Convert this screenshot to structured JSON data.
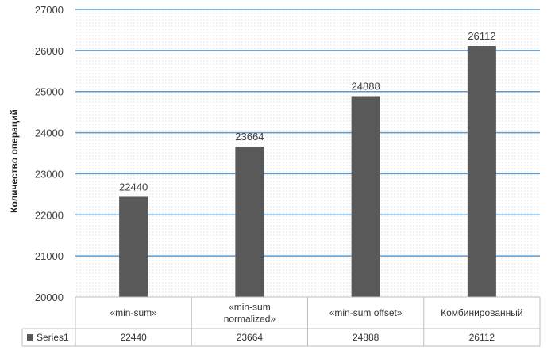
{
  "chart_data": {
    "type": "bar",
    "title": "",
    "ylabel": "Количество операций",
    "xlabel": "",
    "categories": [
      [
        "«min-sum»"
      ],
      [
        "«min-sum",
        "normalized»"
      ],
      [
        "«min-sum offset»"
      ],
      [
        "Комбинированный"
      ]
    ],
    "series": [
      {
        "name": "Series1",
        "values": [
          22440,
          23664,
          24888,
          26112
        ]
      }
    ],
    "value_labels": [
      "22440",
      "23664",
      "24888",
      "26112"
    ],
    "ylim": [
      20000,
      27000
    ],
    "ytick_labels": [
      "20000",
      "21000",
      "22000",
      "23000",
      "24000",
      "25000",
      "26000",
      "27000"
    ],
    "grid": true,
    "data_table": true,
    "colors": {
      "bar": "#595959",
      "grid": "#5b9bd5",
      "table_border": "#bfbfbf",
      "plot_bg": "#f2f2f2"
    }
  }
}
